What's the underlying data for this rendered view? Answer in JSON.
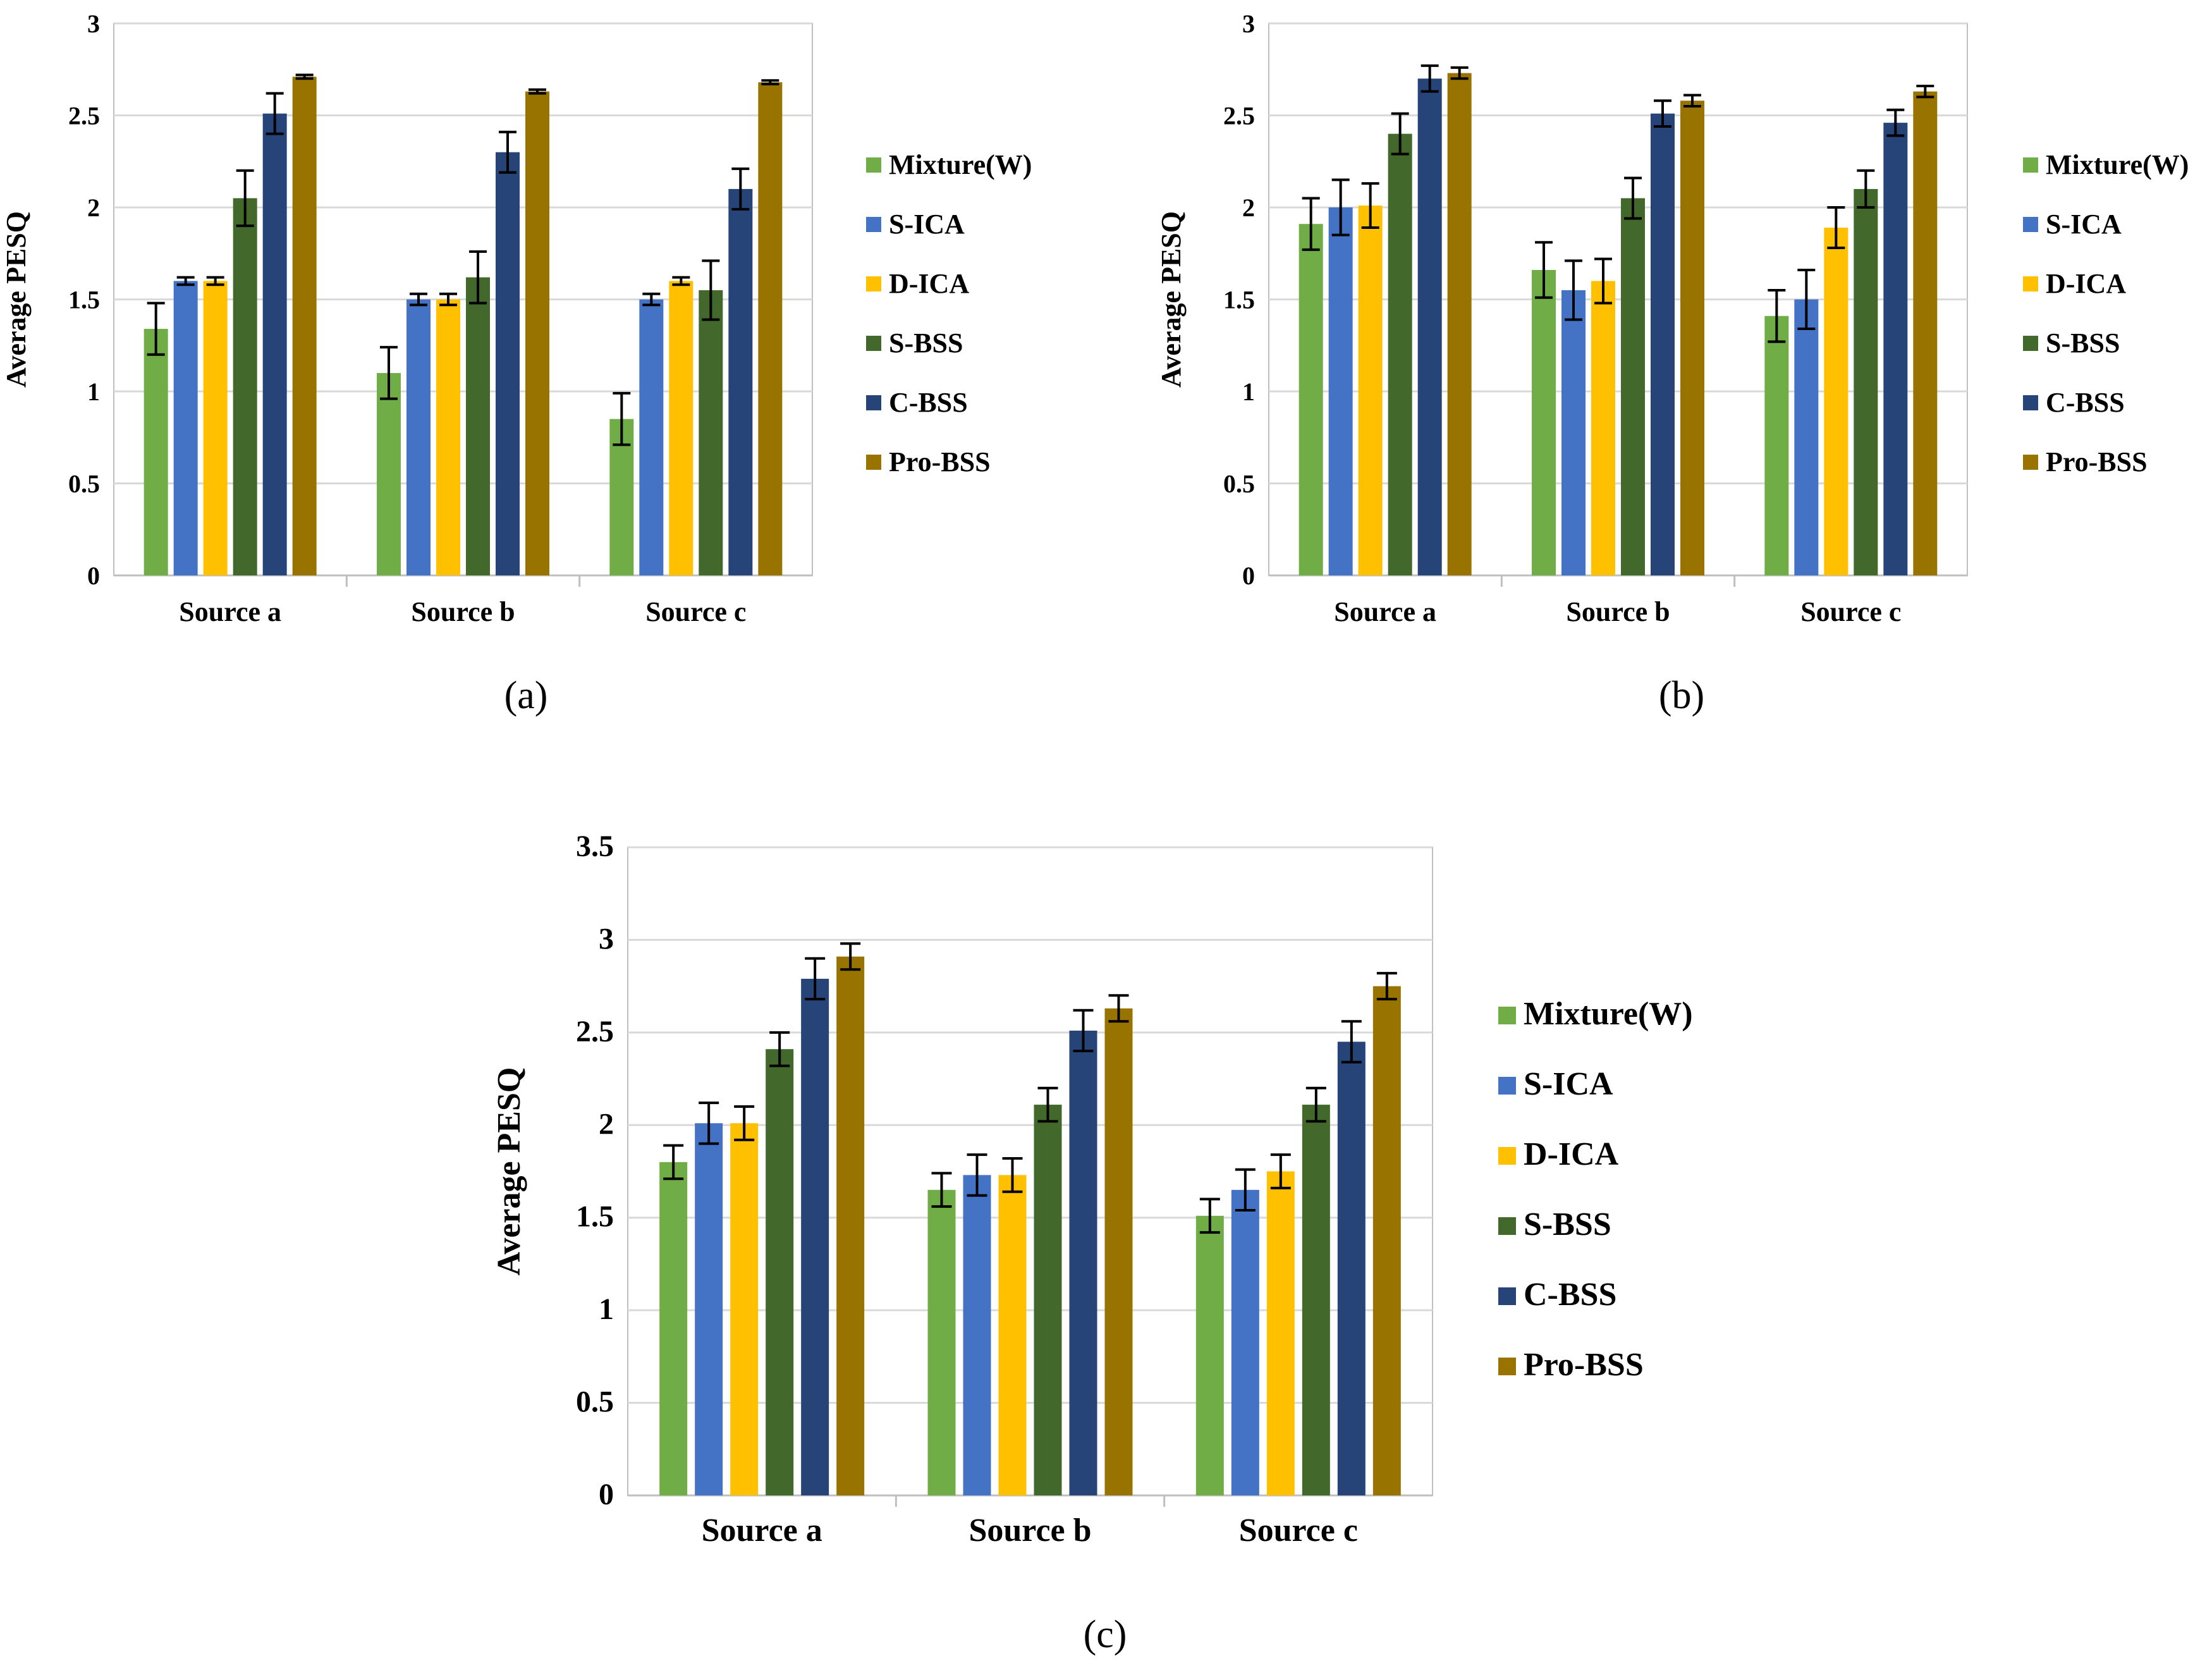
{
  "colors": {
    "Mixture(W)": "#70AD47",
    "S-ICA": "#4472C4",
    "D-ICA": "#FFC000",
    "S-BSS": "#43682B",
    "C-BSS": "#264478",
    "Pro-BSS": "#997300",
    "grid": "#D9D9D9",
    "axis": "#BFBFBF",
    "errorbar": "#000000"
  },
  "chart_data": [
    {
      "type": "bar",
      "panel_label": "(a)",
      "title": "",
      "xlabel": "",
      "ylabel": "Average PESQ",
      "ylim": [
        0,
        3
      ],
      "yticks": [
        0,
        0.5,
        1,
        1.5,
        2,
        2.5,
        3
      ],
      "ytick_labels": [
        "0",
        "0.5",
        "1",
        "1.5",
        "2",
        "2.5",
        "3"
      ],
      "grid": true,
      "legend_position": "right",
      "categories": [
        "Source a",
        "Source b",
        "Source c"
      ],
      "series": [
        {
          "name": "Mixture(W)",
          "values": [
            1.34,
            1.1,
            0.85
          ],
          "errors": [
            0.14,
            0.14,
            0.14
          ]
        },
        {
          "name": "S-ICA",
          "values": [
            1.6,
            1.5,
            1.5
          ],
          "errors": [
            0.02,
            0.03,
            0.03
          ]
        },
        {
          "name": "D-ICA",
          "values": [
            1.6,
            1.5,
            1.6
          ],
          "errors": [
            0.02,
            0.03,
            0.02
          ]
        },
        {
          "name": "S-BSS",
          "values": [
            2.05,
            1.62,
            1.55
          ],
          "errors": [
            0.15,
            0.14,
            0.16
          ]
        },
        {
          "name": "C-BSS",
          "values": [
            2.51,
            2.3,
            2.1
          ],
          "errors": [
            0.11,
            0.11,
            0.11
          ]
        },
        {
          "name": "Pro-BSS",
          "values": [
            2.71,
            2.63,
            2.68
          ],
          "errors": [
            0.01,
            0.01,
            0.01
          ]
        }
      ]
    },
    {
      "type": "bar",
      "panel_label": "(b)",
      "title": "",
      "xlabel": "",
      "ylabel": "Average PESQ",
      "ylim": [
        0,
        3
      ],
      "yticks": [
        0,
        0.5,
        1,
        1.5,
        2,
        2.5,
        3
      ],
      "ytick_labels": [
        "0",
        "0.5",
        "1",
        "1.5",
        "2",
        "2.5",
        "3"
      ],
      "grid": true,
      "legend_position": "right",
      "categories": [
        "Source a",
        "Source b",
        "Source c"
      ],
      "series": [
        {
          "name": "Mixture(W)",
          "values": [
            1.91,
            1.66,
            1.41
          ],
          "errors": [
            0.14,
            0.15,
            0.14
          ]
        },
        {
          "name": "S-ICA",
          "values": [
            2.0,
            1.55,
            1.5
          ],
          "errors": [
            0.15,
            0.16,
            0.16
          ]
        },
        {
          "name": "D-ICA",
          "values": [
            2.01,
            1.6,
            1.89
          ],
          "errors": [
            0.12,
            0.12,
            0.11
          ]
        },
        {
          "name": "S-BSS",
          "values": [
            2.4,
            2.05,
            2.1
          ],
          "errors": [
            0.11,
            0.11,
            0.1
          ]
        },
        {
          "name": "C-BSS",
          "values": [
            2.7,
            2.51,
            2.46
          ],
          "errors": [
            0.07,
            0.07,
            0.07
          ]
        },
        {
          "name": "Pro-BSS",
          "values": [
            2.73,
            2.58,
            2.63
          ],
          "errors": [
            0.03,
            0.03,
            0.03
          ]
        }
      ]
    },
    {
      "type": "bar",
      "panel_label": "(c)",
      "title": "",
      "xlabel": "",
      "ylabel": "Average PESQ",
      "ylim": [
        0,
        3.5
      ],
      "yticks": [
        0,
        0.5,
        1,
        1.5,
        2,
        2.5,
        3,
        3.5
      ],
      "ytick_labels": [
        "0",
        "0.5",
        "1",
        "1.5",
        "2",
        "2.5",
        "3",
        "3.5"
      ],
      "grid": true,
      "legend_position": "right",
      "categories": [
        "Source a",
        "Source b",
        "Source c"
      ],
      "series": [
        {
          "name": "Mixture(W)",
          "values": [
            1.8,
            1.65,
            1.51
          ],
          "errors": [
            0.09,
            0.09,
            0.09
          ]
        },
        {
          "name": "S-ICA",
          "values": [
            2.01,
            1.73,
            1.65
          ],
          "errors": [
            0.11,
            0.11,
            0.11
          ]
        },
        {
          "name": "D-ICA",
          "values": [
            2.01,
            1.73,
            1.75
          ],
          "errors": [
            0.09,
            0.09,
            0.09
          ]
        },
        {
          "name": "S-BSS",
          "values": [
            2.41,
            2.11,
            2.11
          ],
          "errors": [
            0.09,
            0.09,
            0.09
          ]
        },
        {
          "name": "C-BSS",
          "values": [
            2.79,
            2.51,
            2.45
          ],
          "errors": [
            0.11,
            0.11,
            0.11
          ]
        },
        {
          "name": "Pro-BSS",
          "values": [
            2.91,
            2.63,
            2.75
          ],
          "errors": [
            0.07,
            0.07,
            0.07
          ]
        }
      ]
    }
  ]
}
